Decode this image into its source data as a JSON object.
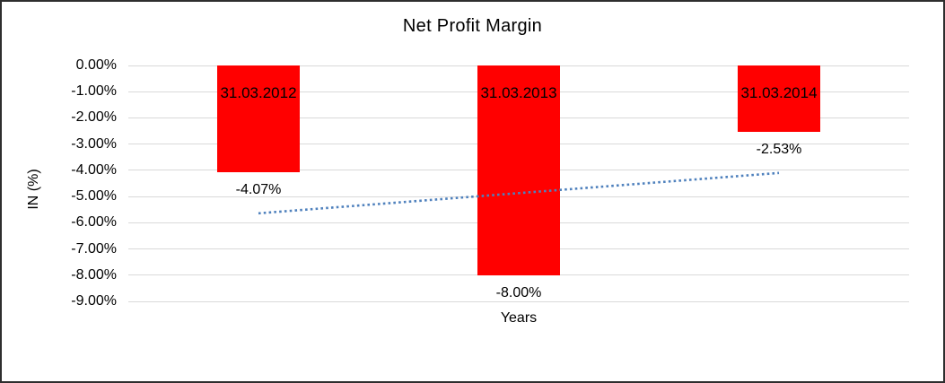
{
  "chart_data": {
    "type": "bar",
    "title": "Net Profit Margin",
    "categories": [
      "31.03.2012",
      "31.03.2013",
      "31.03.2014"
    ],
    "values": [
      -4.07,
      -8.0,
      -2.53
    ],
    "value_labels": [
      "-4.07%",
      "-8.00%",
      "-2.53%"
    ],
    "xlabel": "Years",
    "ylabel": "IN (%)",
    "ylim": [
      -9,
      0
    ],
    "y_ticks": [
      "0.00%",
      "-1.00%",
      "-2.00%",
      "-3.00%",
      "-4.00%",
      "-5.00%",
      "-6.00%",
      "-7.00%",
      "-8.00%",
      "-9.00%"
    ],
    "grid": true,
    "legend": "none",
    "bar_color": "#FF0000",
    "gridline_color": "#D9D9D9",
    "text_color": "#000000",
    "trendline": {
      "type": "linear",
      "style": "dotted",
      "color": "#4F81BD",
      "start_value": -5.64,
      "end_value": -4.1
    }
  }
}
